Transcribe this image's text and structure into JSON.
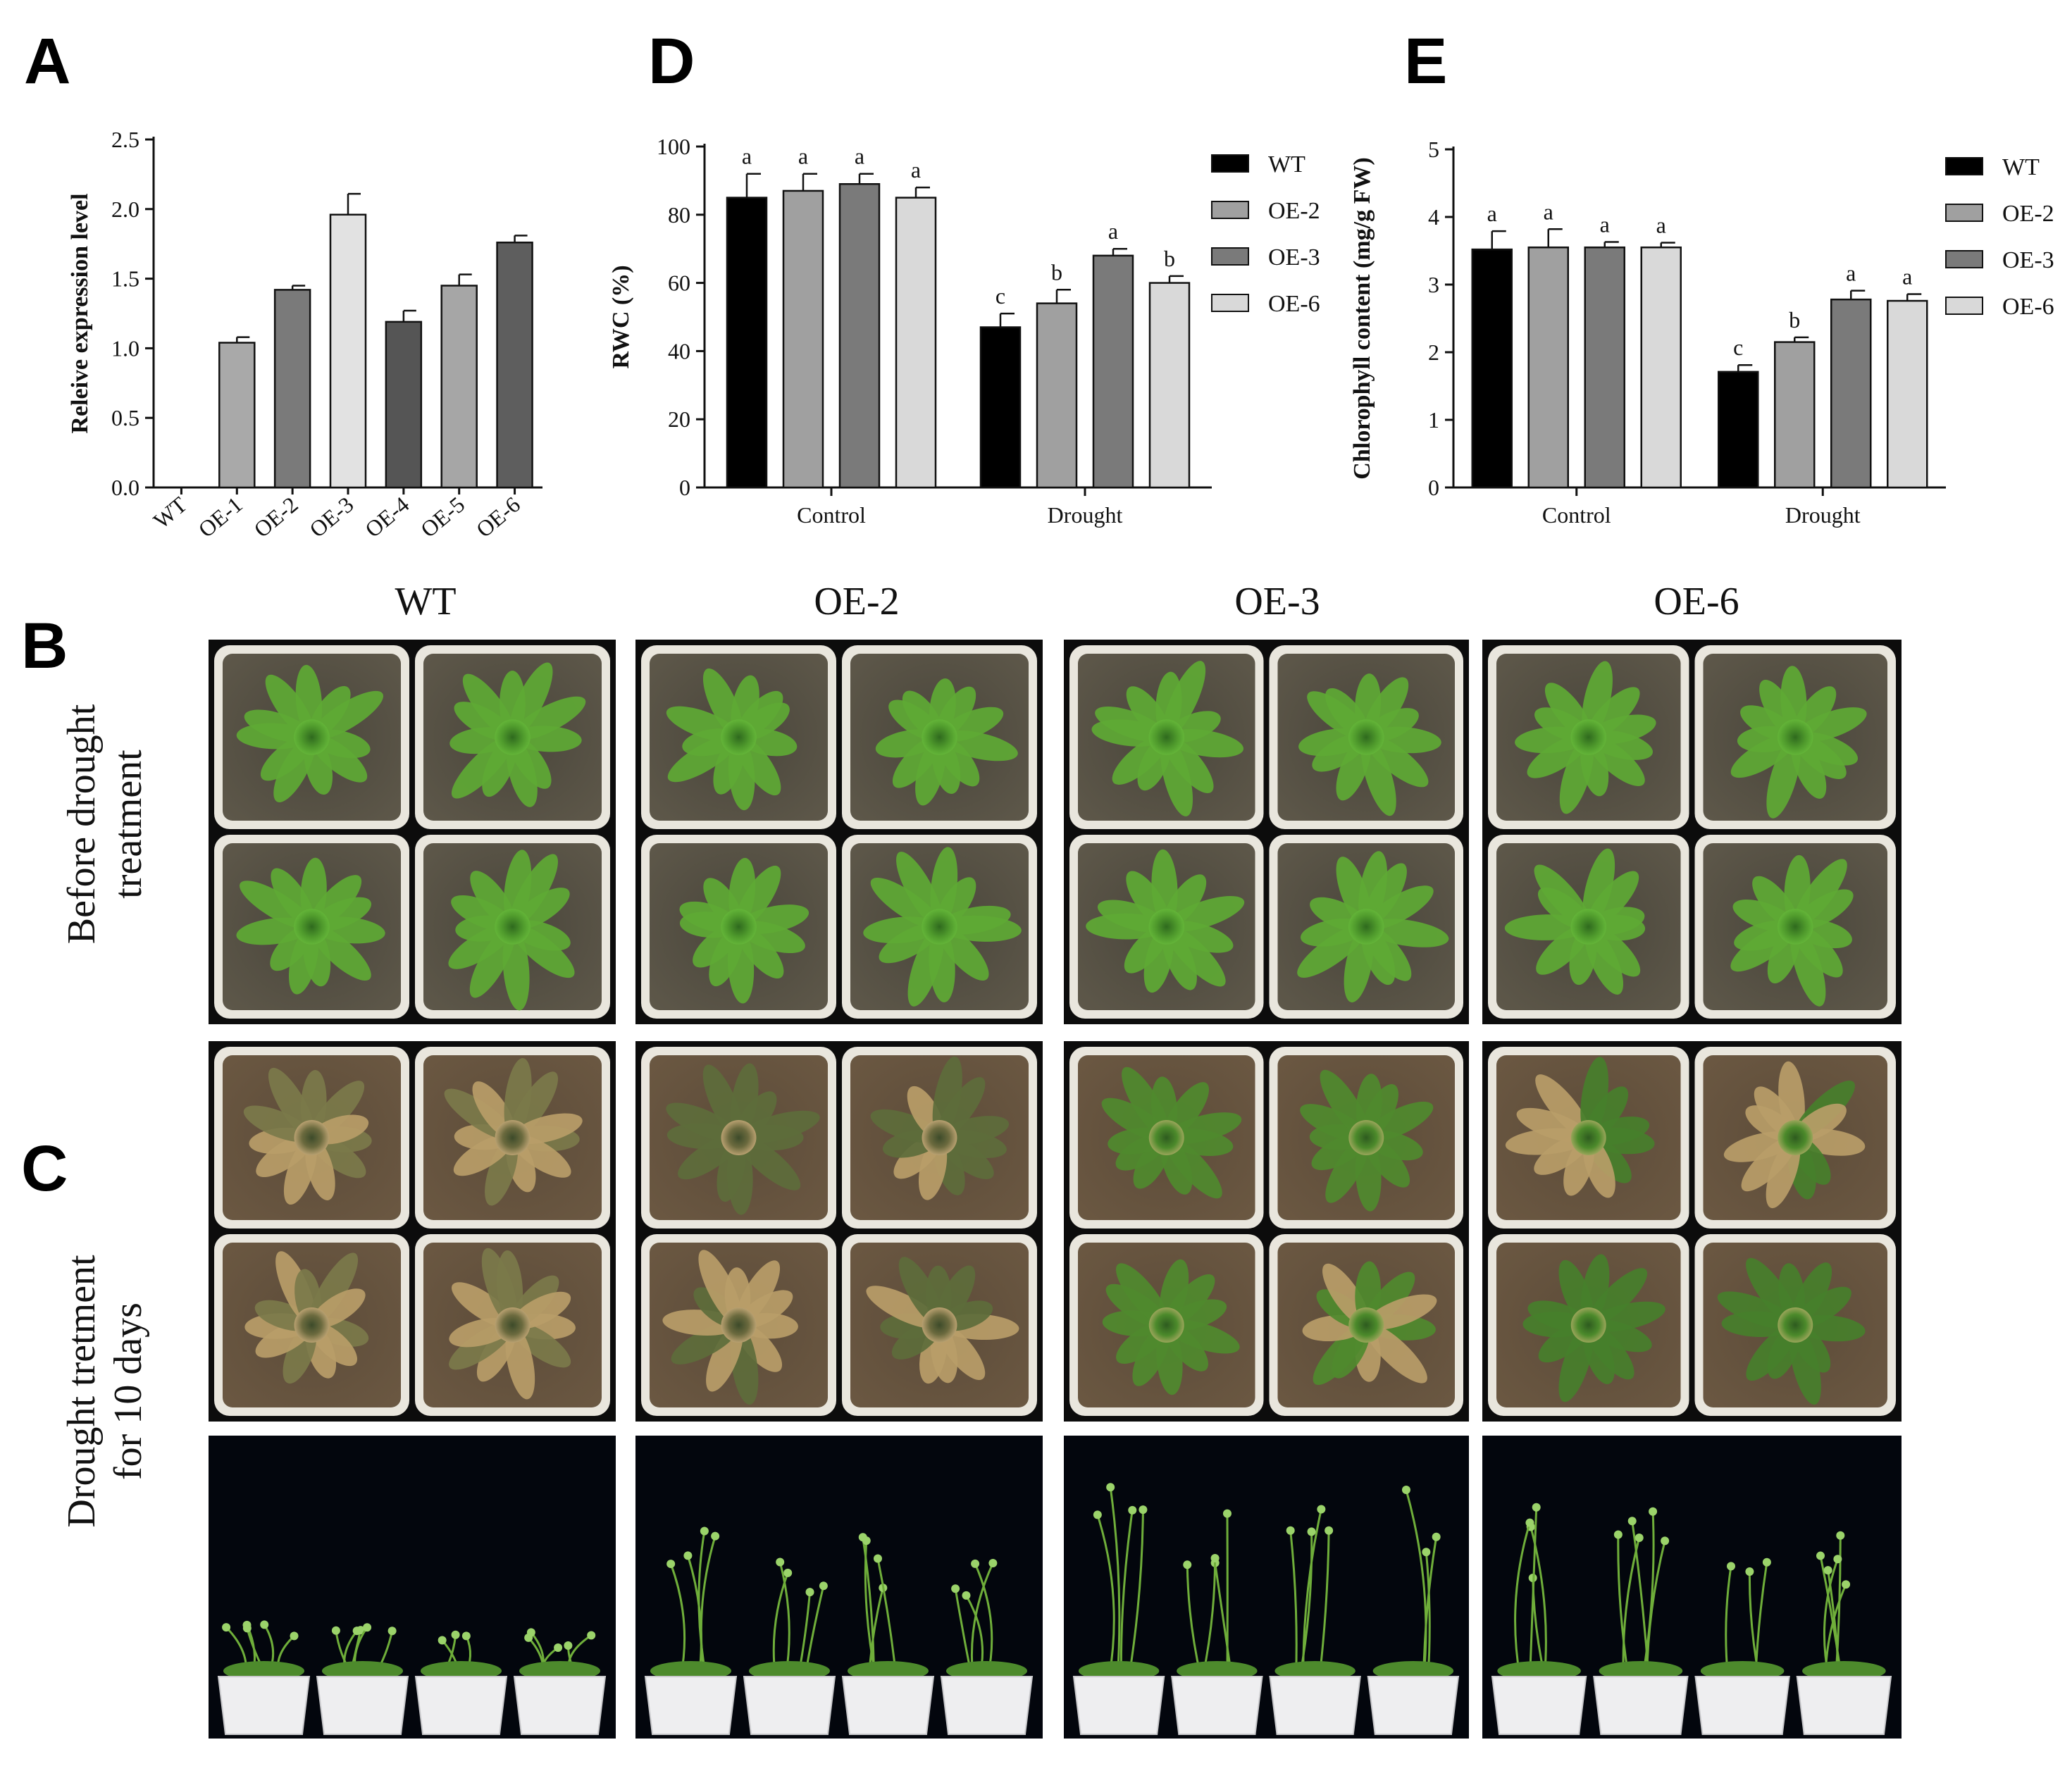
{
  "panels": {
    "A": "A",
    "B": "B",
    "C": "C",
    "D": "D",
    "E": "E"
  },
  "colors": {
    "WT": "#000000",
    "OE-1": "#a9a9a9",
    "OE-2": "#a0a0a0",
    "OE-3": "#7a7a7a",
    "OE-4": "#555555",
    "OE-5": "#a6a6a6",
    "OE-6": "#d9d9d9",
    "OE-3-bar-A": "#e2e2e2",
    "OE-6-bar-A": "#5e5e5e"
  },
  "chart_data": [
    {
      "id": "A",
      "type": "bar",
      "categories": [
        "WT",
        "OE-1",
        "OE-2",
        "OE-3",
        "OE-4",
        "OE-5",
        "OE-6"
      ],
      "values": [
        0.0,
        1.04,
        1.42,
        1.96,
        1.19,
        1.45,
        1.76
      ],
      "errors": [
        0.0,
        0.04,
        0.03,
        0.15,
        0.08,
        0.08,
        0.05
      ],
      "bar_colors": [
        "#000000",
        "#a9a9a9",
        "#7a7a7a",
        "#e2e2e2",
        "#555555",
        "#a6a6a6",
        "#5e5e5e"
      ],
      "xlabel": "",
      "ylabel": "Releive expression level",
      "ylim": [
        0,
        2.5
      ],
      "yticks": [
        "0.0",
        "0.5",
        "1.0",
        "1.5",
        "2.0",
        "2.5"
      ],
      "grid": false
    },
    {
      "id": "D",
      "type": "bar",
      "categories": [
        "Control",
        "Drought"
      ],
      "series": [
        {
          "name": "WT",
          "values": [
            85,
            47
          ],
          "errors": [
            7,
            4
          ],
          "letters": [
            "a",
            "c"
          ],
          "color": "#000000"
        },
        {
          "name": "OE-2",
          "values": [
            87,
            54
          ],
          "errors": [
            5,
            4
          ],
          "letters": [
            "a",
            "b"
          ],
          "color": "#a0a0a0"
        },
        {
          "name": "OE-3",
          "values": [
            89,
            68
          ],
          "errors": [
            3,
            2
          ],
          "letters": [
            "a",
            "a"
          ],
          "color": "#7a7a7a"
        },
        {
          "name": "OE-6",
          "values": [
            85,
            60
          ],
          "errors": [
            3,
            2
          ],
          "letters": [
            "a",
            "b"
          ],
          "color": "#d9d9d9"
        }
      ],
      "xlabel": "",
      "ylabel": "RWC (%)",
      "ylim": [
        0,
        100
      ],
      "yticks": [
        "0",
        "20",
        "40",
        "60",
        "80",
        "100"
      ],
      "legend": "right",
      "grid": false
    },
    {
      "id": "E",
      "type": "bar",
      "categories": [
        "Control",
        "Drought"
      ],
      "series": [
        {
          "name": "WT",
          "values": [
            3.52,
            1.71
          ],
          "errors": [
            0.27,
            0.1
          ],
          "letters": [
            "a",
            "c"
          ],
          "color": "#000000"
        },
        {
          "name": "OE-2",
          "values": [
            3.55,
            2.15
          ],
          "errors": [
            0.27,
            0.07
          ],
          "letters": [
            "a",
            "b"
          ],
          "color": "#a0a0a0"
        },
        {
          "name": "OE-3",
          "values": [
            3.55,
            2.78
          ],
          "errors": [
            0.08,
            0.13
          ],
          "letters": [
            "a",
            "a"
          ],
          "color": "#7a7a7a"
        },
        {
          "name": "OE-6",
          "values": [
            3.55,
            2.76
          ],
          "errors": [
            0.07,
            0.1
          ],
          "letters": [
            "a",
            "a"
          ],
          "color": "#d9d9d9"
        }
      ],
      "xlabel": "",
      "ylabel": "Chlorophyll content (mg/g FW)",
      "ylim": [
        0,
        5
      ],
      "yticks": [
        "0",
        "1",
        "2",
        "3",
        "4",
        "5"
      ],
      "legend": "right",
      "grid": false
    }
  ],
  "photos": {
    "column_headers": [
      "WT",
      "OE-2",
      "OE-3",
      "OE-6"
    ],
    "row_B_label_line1": "Before drought",
    "row_B_label_line2": "treatment",
    "row_C_label_line1": "Drought tretment",
    "row_C_label_line2": "for 10 days"
  }
}
